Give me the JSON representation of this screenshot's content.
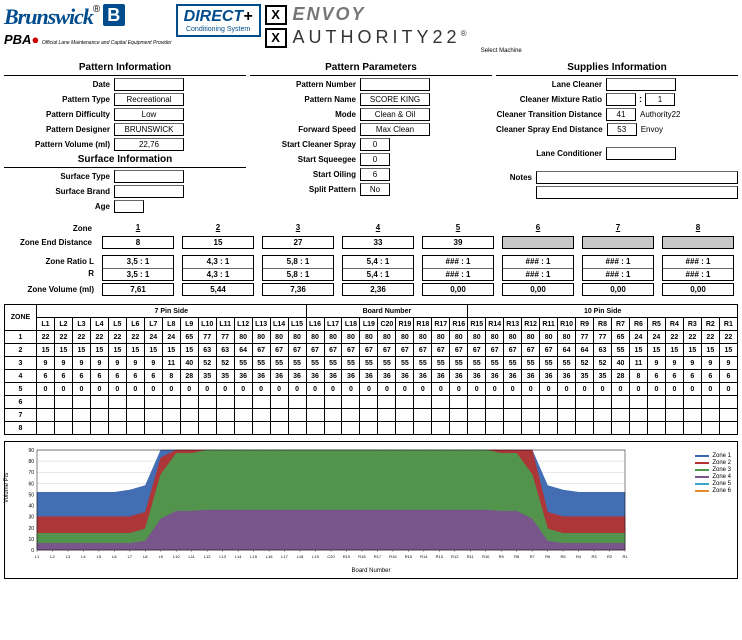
{
  "header": {
    "brand": "Brunswick",
    "reg": "®",
    "blue_mark": "B",
    "pba": "PBA",
    "pba_tag": "Official Lane Maintenance and Capital Equipment Provider",
    "direct_top": "DIRECT",
    "direct_plus": "+",
    "direct_sub": "Conditioning System",
    "x_mark": "X",
    "envoy": "ENVOY",
    "authority": "AUTHORITY22",
    "auth_reg": "®",
    "select_machine": "Select Machine"
  },
  "pattern_info": {
    "head": "Pattern Information",
    "date_lbl": "Date",
    "date": "",
    "type_lbl": "Pattern Type",
    "type": "Recreational",
    "diff_lbl": "Pattern Difficulty",
    "diff": "Low",
    "des_lbl": "Pattern Designer",
    "des": "BRUNSWICK",
    "vol_lbl": "Pattern Volume (ml)",
    "vol": "22,76"
  },
  "surface_info": {
    "head": "Surface Information",
    "type_lbl": "Surface Type",
    "type": "",
    "brand_lbl": "Surface Brand",
    "brand": "",
    "age_lbl": "Age",
    "age": ""
  },
  "pattern_params": {
    "head": "Pattern Parameters",
    "num_lbl": "Pattern Number",
    "num": "",
    "name_lbl": "Pattern Name",
    "name": "SCORE KING",
    "mode_lbl": "Mode",
    "mode": "Clean & Oil",
    "fs_lbl": "Forward Speed",
    "fs": "Max Clean",
    "scs_lbl": "Start Cleaner Spray",
    "scs": "0",
    "ssq_lbl": "Start Squeegee",
    "ssq": "0",
    "so_lbl": "Start Oiling",
    "so": "6",
    "sp_lbl": "Split Pattern",
    "sp": "No"
  },
  "supplies": {
    "head": "Supplies Information",
    "lc_lbl": "Lane Cleaner",
    "lc": "",
    "mix_lbl": "Cleaner Mixture Ratio",
    "mix_a": "",
    "mix_sep": ":",
    "mix_b": "1",
    "ctd_lbl": "Cleaner Transition Distance",
    "ctd": "41",
    "ctd_side": "Authority22",
    "csed_lbl": "Cleaner Spray End Distance",
    "csed": "53",
    "csed_side": "Envoy",
    "cond_lbl": "Lane Conditioner",
    "cond": "",
    "notes_lbl": "Notes"
  },
  "zones": {
    "zone_lbl": "Zone",
    "end_lbl": "Zone End Distance",
    "heads": [
      "1",
      "2",
      "3",
      "4",
      "5",
      "6",
      "7",
      "8"
    ],
    "ends": [
      "8",
      "15",
      "27",
      "33",
      "39",
      "",
      "",
      ""
    ],
    "grey": [
      false,
      false,
      false,
      false,
      false,
      true,
      true,
      true
    ],
    "ratio_lbl": "Zone Ratio",
    "l_lbl": "L",
    "r_lbl": "R",
    "ratios_l": [
      "3,5  :  1",
      "4,3  :  1",
      "5,8  :  1",
      "5,4  :  1",
      "###  :  1",
      "###  :  1",
      "###  :  1",
      "###  :  1"
    ],
    "ratios_r": [
      "3,5  :  1",
      "4,3  :  1",
      "5,8  :  1",
      "5,4  :  1",
      "###  :  1",
      "###  :  1",
      "###  :  1",
      "###  :  1"
    ],
    "zv_lbl": "Zone Volume (ml)",
    "volumes": [
      "7,61",
      "5,44",
      "7,36",
      "2,36",
      "0,00",
      "0,00",
      "0,00",
      "0,00"
    ]
  },
  "board_table": {
    "zone_hdr": "ZONE",
    "span7": "7 Pin Side",
    "board_hdr": "Board Number",
    "span10": "10 Pin Side",
    "cols_l": [
      "L1",
      "L2",
      "L3",
      "L4",
      "L5",
      "L6",
      "L7",
      "L8",
      "L9",
      "L10",
      "L11",
      "L12",
      "L13",
      "L14",
      "L15",
      "L16",
      "L17",
      "L18",
      "L19",
      "C20"
    ],
    "cols_r": [
      "R19",
      "R18",
      "R17",
      "R16",
      "R15",
      "R14",
      "R13",
      "R12",
      "R11",
      "R10",
      "R9",
      "R8",
      "R7",
      "R6",
      "R5",
      "R4",
      "R3",
      "R2",
      "R1"
    ],
    "rows": [
      {
        "z": "1",
        "v": [
          22,
          22,
          22,
          22,
          22,
          22,
          24,
          24,
          65,
          77,
          77,
          80,
          80,
          80,
          80,
          80,
          80,
          80,
          80,
          80,
          80,
          80,
          80,
          80,
          80,
          80,
          80,
          80,
          80,
          80,
          77,
          77,
          65,
          24,
          24,
          22,
          22,
          22,
          22
        ]
      },
      {
        "z": "2",
        "v": [
          15,
          15,
          15,
          15,
          15,
          15,
          15,
          15,
          15,
          63,
          63,
          64,
          67,
          67,
          67,
          67,
          67,
          67,
          67,
          67,
          67,
          67,
          67,
          67,
          67,
          67,
          67,
          67,
          67,
          64,
          64,
          63,
          55,
          15,
          15,
          15,
          15,
          15,
          15
        ]
      },
      {
        "z": "3",
        "v": [
          9,
          9,
          9,
          9,
          9,
          9,
          9,
          11,
          40,
          52,
          52,
          55,
          55,
          55,
          55,
          55,
          55,
          55,
          55,
          55,
          55,
          55,
          55,
          55,
          55,
          55,
          55,
          55,
          55,
          55,
          52,
          52,
          40,
          11,
          9,
          9,
          9,
          9,
          9
        ]
      },
      {
        "z": "4",
        "v": [
          6,
          6,
          6,
          6,
          6,
          6,
          6,
          8,
          28,
          35,
          35,
          36,
          36,
          36,
          36,
          36,
          36,
          36,
          36,
          36,
          36,
          36,
          36,
          36,
          36,
          36,
          36,
          36,
          36,
          36,
          35,
          35,
          28,
          8,
          6,
          6,
          6,
          6,
          6
        ]
      },
      {
        "z": "5",
        "v": [
          0,
          0,
          0,
          0,
          0,
          0,
          0,
          0,
          0,
          0,
          0,
          0,
          0,
          0,
          0,
          0,
          0,
          0,
          0,
          0,
          0,
          0,
          0,
          0,
          0,
          0,
          0,
          0,
          0,
          0,
          0,
          0,
          0,
          0,
          0,
          0,
          0,
          0,
          0
        ]
      },
      {
        "z": "6",
        "v": [
          "",
          "",
          "",
          "",
          "",
          "",
          "",
          "",
          "",
          "",
          "",
          "",
          "",
          "",
          "",
          "",
          "",
          "",
          "",
          "",
          "",
          "",
          "",
          "",
          "",
          "",
          "",
          "",
          "",
          "",
          "",
          "",
          "",
          "",
          "",
          "",
          "",
          "",
          ""
        ]
      },
      {
        "z": "7",
        "v": [
          "",
          "",
          "",
          "",
          "",
          "",
          "",
          "",
          "",
          "",
          "",
          "",
          "",
          "",
          "",
          "",
          "",
          "",
          "",
          "",
          "",
          "",
          "",
          "",
          "",
          "",
          "",
          "",
          "",
          "",
          "",
          "",
          "",
          "",
          "",
          "",
          "",
          "",
          ""
        ]
      },
      {
        "z": "8",
        "v": [
          "",
          "",
          "",
          "",
          "",
          "",
          "",
          "",
          "",
          "",
          "",
          "",
          "",
          "",
          "",
          "",
          "",
          "",
          "",
          "",
          "",
          "",
          "",
          "",
          "",
          "",
          "",
          "",
          "",
          "",
          "",
          "",
          "",
          "",
          "",
          "",
          "",
          "",
          ""
        ]
      }
    ]
  },
  "chart": {
    "y_label": "Volume Pts",
    "x_label": "Board Number",
    "colors": {
      "z1": "#3a66b0",
      "z2": "#b33333",
      "z3": "#4d9a4d",
      "z4": "#7a528f",
      "bg": "#ffffff",
      "grid": "#d0d0d0"
    },
    "y_max": 90,
    "y_step": 10,
    "legend": [
      "Zone 1",
      "Zone 2",
      "Zone 3",
      "Zone 4",
      "Zone 5",
      "Zone 6"
    ],
    "x_ticks": [
      "L1",
      "L2",
      "L3",
      "L4",
      "L5",
      "L6",
      "L7",
      "L8",
      "L9",
      "L10",
      "L11",
      "L12",
      "L13",
      "L14",
      "L15",
      "L16",
      "L17",
      "L18",
      "L19",
      "C20",
      "R19",
      "R18",
      "R17",
      "R16",
      "R15",
      "R14",
      "R13",
      "R12",
      "R11",
      "R10",
      "R9",
      "R8",
      "R7",
      "R6",
      "R5",
      "R4",
      "R3",
      "R2",
      "R1"
    ]
  }
}
